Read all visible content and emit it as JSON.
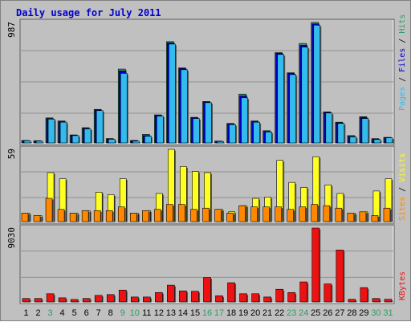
{
  "colors": {
    "pages": "#33bbee",
    "files": "#0000cc",
    "hits": "#339966",
    "sites": "#ff8800",
    "visits": "#ffff22",
    "kbytes": "#ee1111",
    "panel": "#c0c0c0",
    "grid": "#909090",
    "title": "#0000cc"
  },
  "chart_data": [
    {
      "type": "bar",
      "title": "Daily usage for July 2011",
      "ylabel_top": "987",
      "ylim": [
        0,
        987
      ],
      "series_labels": [
        "Pages",
        "Files",
        "Hits"
      ],
      "categories": [
        "1",
        "2",
        "3",
        "4",
        "5",
        "6",
        "7",
        "8",
        "9",
        "10",
        "11",
        "12",
        "13",
        "14",
        "15",
        "16",
        "17",
        "18",
        "19",
        "20",
        "21",
        "22",
        "23",
        "24",
        "25",
        "26",
        "27",
        "28",
        "29",
        "30",
        "31"
      ],
      "weekend_days": [
        "3",
        "9",
        "10",
        "16",
        "17",
        "23",
        "24",
        "30",
        "31"
      ],
      "series": [
        {
          "name": "Hits",
          "values": [
            20,
            18,
            205,
            180,
            65,
            125,
            275,
            35,
            605,
            20,
            70,
            230,
            830,
            615,
            210,
            340,
            15,
            160,
            400,
            180,
            100,
            740,
            575,
            815,
            987,
            255,
            170,
            60,
            215,
            35,
            45
          ]
        },
        {
          "name": "Files",
          "values": [
            20,
            18,
            200,
            175,
            65,
            120,
            270,
            35,
            590,
            20,
            60,
            225,
            820,
            610,
            205,
            335,
            15,
            155,
            385,
            175,
            95,
            735,
            570,
            800,
            975,
            250,
            165,
            55,
            210,
            30,
            45
          ]
        },
        {
          "name": "Pages",
          "values": [
            18,
            15,
            195,
            170,
            60,
            115,
            265,
            30,
            570,
            15,
            55,
            220,
            810,
            600,
            200,
            330,
            12,
            150,
            370,
            170,
            90,
            725,
            560,
            785,
            965,
            245,
            160,
            50,
            200,
            28,
            42
          ]
        }
      ]
    },
    {
      "type": "bar",
      "ylabel_top": "59",
      "ylim": [
        0,
        59
      ],
      "series_labels": [
        "Sites",
        "Visits"
      ],
      "categories": [
        "1",
        "2",
        "3",
        "4",
        "5",
        "6",
        "7",
        "8",
        "9",
        "10",
        "11",
        "12",
        "13",
        "14",
        "15",
        "16",
        "17",
        "18",
        "19",
        "20",
        "21",
        "22",
        "23",
        "24",
        "25",
        "26",
        "27",
        "28",
        "29",
        "30",
        "31"
      ],
      "series": [
        {
          "name": "Visits",
          "values": [
            7,
            5,
            40,
            35,
            7,
            9,
            24,
            22,
            35,
            7,
            9,
            23,
            59,
            45,
            41,
            40,
            10,
            8,
            13,
            19,
            20,
            50,
            32,
            28,
            53,
            30,
            23,
            7,
            8,
            25,
            35
          ]
        },
        {
          "name": "Sites",
          "values": [
            7,
            5,
            19,
            10,
            7,
            9,
            9,
            9,
            12,
            7,
            9,
            10,
            14,
            14,
            10,
            11,
            10,
            7,
            13,
            12,
            12,
            12,
            10,
            12,
            14,
            13,
            11,
            7,
            8,
            5,
            11
          ]
        }
      ]
    },
    {
      "type": "bar",
      "ylabel_top": "9030",
      "ylim": [
        0,
        9030
      ],
      "series_labels": [
        "KBytes"
      ],
      "categories": [
        "1",
        "2",
        "3",
        "4",
        "5",
        "6",
        "7",
        "8",
        "9",
        "10",
        "11",
        "12",
        "13",
        "14",
        "15",
        "16",
        "17",
        "18",
        "19",
        "20",
        "21",
        "22",
        "23",
        "24",
        "25",
        "26",
        "27",
        "28",
        "29",
        "30",
        "31"
      ],
      "series": [
        {
          "name": "KBytes",
          "values": [
            420,
            420,
            1000,
            500,
            300,
            420,
            800,
            900,
            1450,
            600,
            600,
            1150,
            2050,
            1350,
            1300,
            2980,
            750,
            2350,
            1000,
            1000,
            600,
            1550,
            1150,
            2450,
            9030,
            2200,
            6350,
            320,
            1750,
            420,
            320
          ]
        }
      ]
    }
  ]
}
